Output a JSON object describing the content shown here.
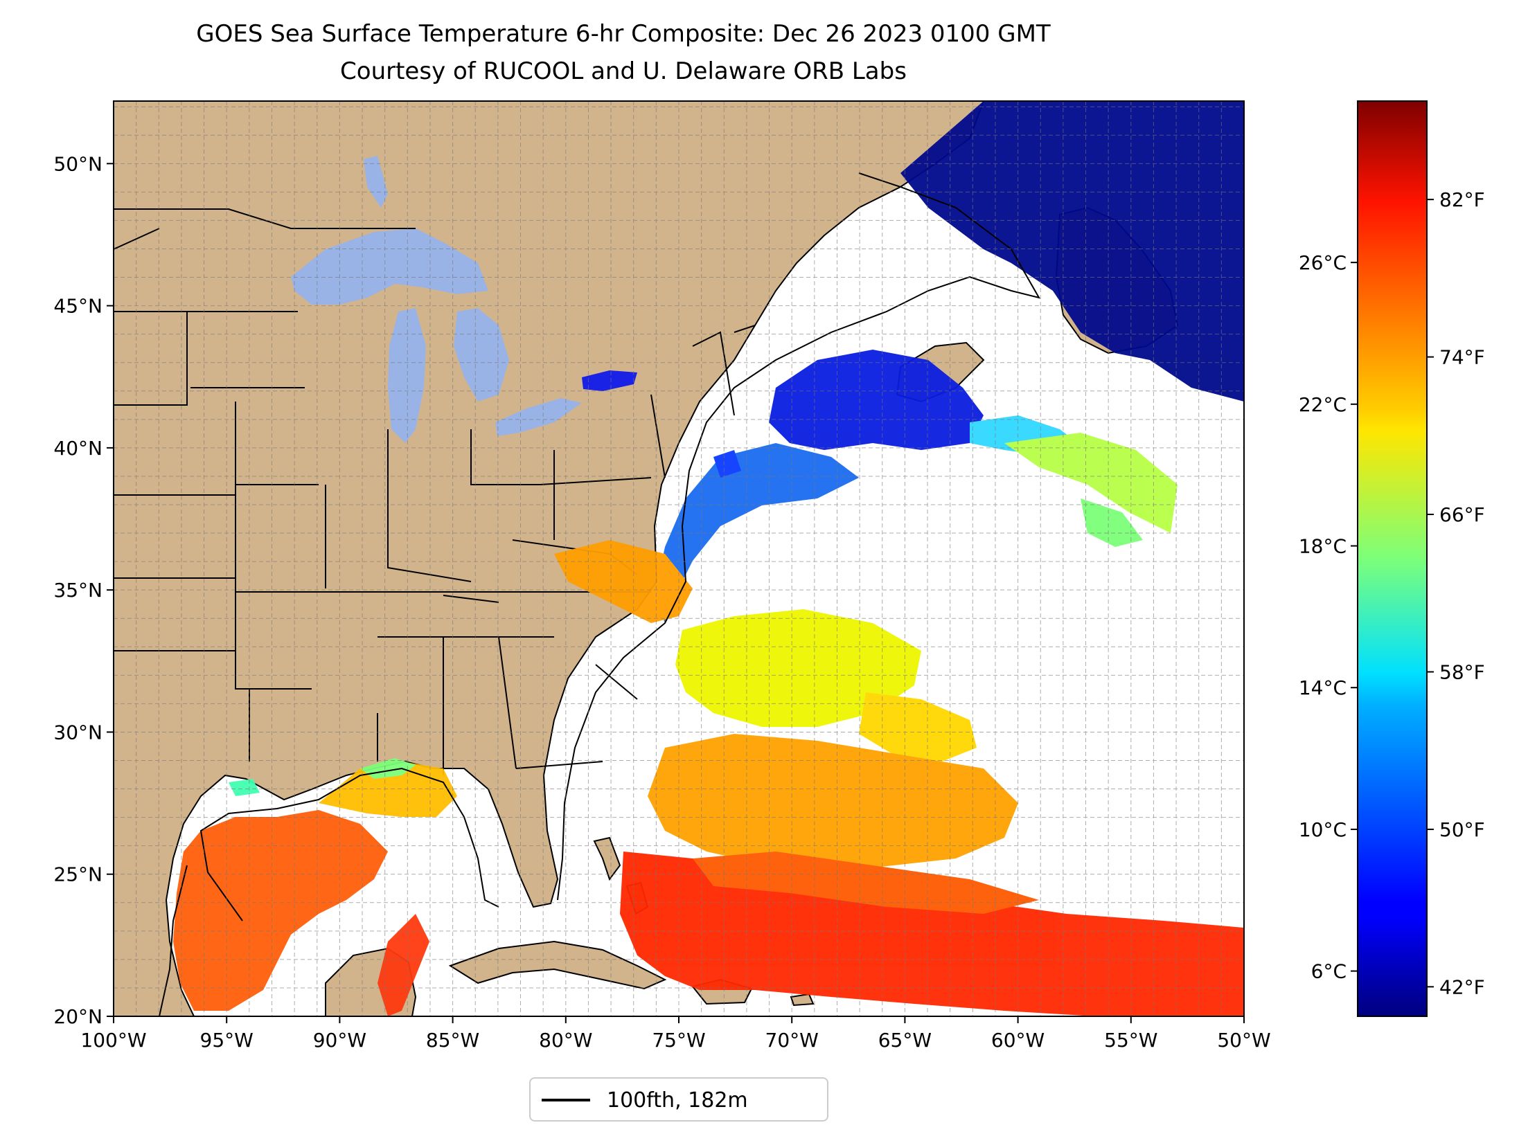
{
  "title": "GOES Sea Surface Temperature 6-hr Composite: Dec 26 2023 0100 GMT",
  "subtitle": "Courtesy of RUCOOL and U. Delaware ORB Labs",
  "map": {
    "lon_range": [
      -100,
      -50
    ],
    "lat_range": [
      20,
      52.2
    ],
    "lon_ticks": [
      "100°W",
      "95°W",
      "90°W",
      "85°W",
      "80°W",
      "75°W",
      "70°W",
      "65°W",
      "60°W",
      "55°W",
      "50°W"
    ],
    "lat_ticks": [
      "20°N",
      "25°N",
      "30°N",
      "35°N",
      "40°N",
      "45°N",
      "50°N"
    ],
    "lat_tick_values": [
      20,
      25,
      30,
      35,
      40,
      45,
      50
    ],
    "grid_spacing_deg": 1,
    "land_color": "#d2b48c",
    "lake_color": "#99b3e6",
    "ocean_color": "#ffffff"
  },
  "colorbar": {
    "colormap": "jet",
    "celsius_ticks": [
      "26°C",
      "22°C",
      "18°C",
      "14°C",
      "10°C",
      "6°C"
    ],
    "celsius_values": [
      26,
      22,
      18,
      14,
      10,
      6
    ],
    "fahrenheit_ticks": [
      "82°F",
      "74°F",
      "66°F",
      "58°F",
      "50°F",
      "42°F"
    ],
    "fahrenheit_values": [
      82,
      74,
      66,
      58,
      50,
      42
    ],
    "range_f": [
      40.5,
      87
    ]
  },
  "legend": {
    "label": "100fth, 182m"
  }
}
